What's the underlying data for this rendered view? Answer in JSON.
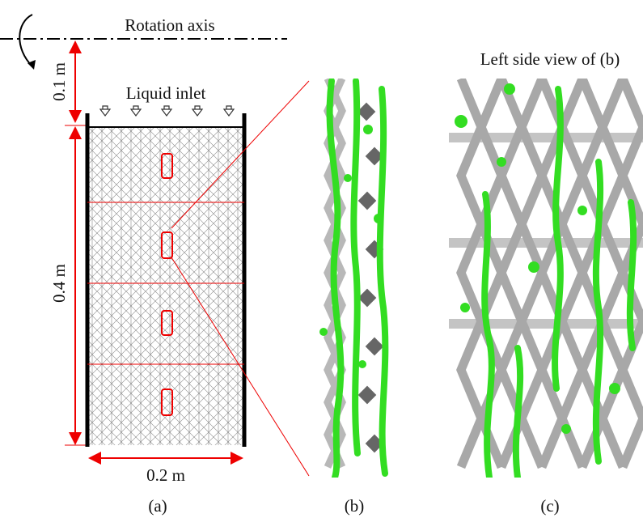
{
  "labels": {
    "rotation_axis": "Rotation axis",
    "liquid_inlet": "Liquid inlet",
    "dim_top": "0.1 m",
    "dim_height": "0.4 m",
    "dim_width": "0.2 m",
    "side_view_title": "Left side view of (b)",
    "caption_a": "(a)",
    "caption_b": "(b)",
    "caption_c": "(c)"
  }
}
